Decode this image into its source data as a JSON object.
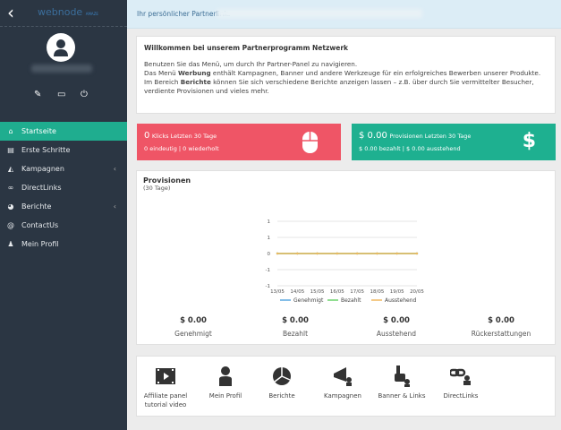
{
  "brand": "webnode",
  "brand_sub": "AMAZE",
  "sidebar": {
    "items": [
      {
        "label": "Startseite",
        "icon": "home-icon",
        "active": true
      },
      {
        "label": "Erste Schritte",
        "icon": "book-icon"
      },
      {
        "label": "Kampagnen",
        "icon": "megaphone-icon",
        "has_submenu": true
      },
      {
        "label": "DirectLinks",
        "icon": "link-icon"
      },
      {
        "label": "Berichte",
        "icon": "pie-chart-icon",
        "has_submenu": true
      },
      {
        "label": "ContactUs",
        "icon": "at-icon"
      },
      {
        "label": "Mein Profil",
        "icon": "user-icon"
      }
    ]
  },
  "topbar": {
    "partner_label": "Ihr persönlicher Partnerlink:"
  },
  "welcome": {
    "title": "Willkommen bei unserem Partnerprogramm Netzwerk",
    "line1": "Benutzen Sie das Menü, um durch Ihr Partner-Panel zu navigieren.",
    "line2_a": "Das Menü ",
    "line2_b": "Werbung",
    "line2_c": " enthält Kampagnen, Banner und andere Werkzeuge für ein erfolgreiches Bewerben unserer Produkte.",
    "line3_a": "Im Bereich ",
    "line3_b": "Berichte",
    "line3_c": " können Sie sich verschiedene Berichte anzeigen lassen – z.B. über durch Sie vermittelter Besucher, verdiente Provisionen und vieles mehr."
  },
  "clicks": {
    "value": "0",
    "label": "Klicks Letzten 30 Tage",
    "sub": "0 eindeutig | 0 wiederholt",
    "color": "#ef5566"
  },
  "provisions": {
    "value": "$ 0.00",
    "label": "Provisionen Letzten 30 Tage",
    "sub": "$ 0.00 bezahlt | $ 0.00 ausstehend",
    "color": "#1eb090"
  },
  "chart": {
    "title": "Provisionen",
    "subtitle": "(30 Tage)"
  },
  "chart_data": {
    "type": "line",
    "x": [
      "13/05",
      "14/05",
      "15/05",
      "16/05",
      "17/05",
      "18/05",
      "19/05",
      "20/05"
    ],
    "y_tick_labels": [
      "1",
      "1",
      "0",
      "-1",
      "-1"
    ],
    "ylim": [
      -1,
      1
    ],
    "grid": true,
    "legend": "bottom",
    "series": [
      {
        "name": "Genehmigt",
        "values": [
          0,
          0,
          0,
          0,
          0,
          0,
          0,
          0
        ],
        "color": "#5aa9e0"
      },
      {
        "name": "Bezahlt",
        "values": [
          0,
          0,
          0,
          0,
          0,
          0,
          0,
          0
        ],
        "color": "#6cd36c"
      },
      {
        "name": "Ausstehend",
        "values": [
          0,
          0,
          0,
          0,
          0,
          0,
          0,
          0
        ],
        "color": "#f0b860"
      }
    ]
  },
  "totals": [
    {
      "value": "$ 0.00",
      "label": "Genehmigt"
    },
    {
      "value": "$ 0.00",
      "label": "Bezahlt"
    },
    {
      "value": "$ 0.00",
      "label": "Ausstehend"
    },
    {
      "value": "$ 0.00",
      "label": "Rückerstattungen"
    }
  ],
  "shortcuts": [
    {
      "label": "Affiliate panel tutorial video",
      "icon": "video-icon"
    },
    {
      "label": "Mein Profil",
      "icon": "user-icon"
    },
    {
      "label": "Berichte",
      "icon": "pie-chart-icon"
    },
    {
      "label": "Kampagnen",
      "icon": "megaphone-icon"
    },
    {
      "label": "Banner & Links",
      "icon": "pointer-hand-icon"
    },
    {
      "label": "DirectLinks",
      "icon": "link-icon"
    }
  ]
}
